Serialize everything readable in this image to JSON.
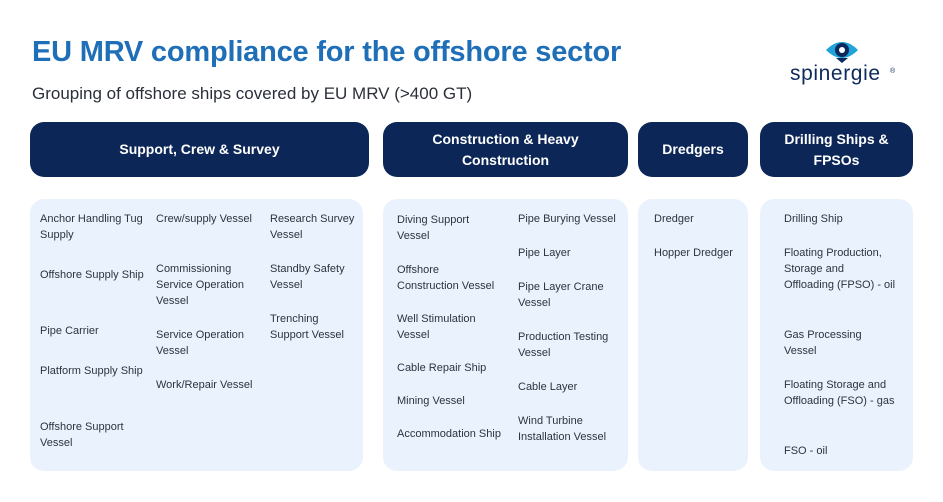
{
  "title": "EU MRV compliance for the offshore sector",
  "subtitle": "Grouping of offshore ships covered by EU MRV (>400 GT)",
  "logo": {
    "text": "spinergie",
    "mark": "®",
    "icon": "eye-logo-icon",
    "color": "#0d2a5c",
    "accent": "#1fa3d8"
  },
  "colors": {
    "title": "#1f6fb8",
    "header_bg": "#0c2757",
    "panel_bg": "#eaf3fd"
  },
  "categories": [
    {
      "label": "Support, Crew & Survey",
      "items": [
        "Anchor Handling Tug Supply",
        "Offshore Supply Ship",
        "Pipe Carrier",
        "Platform Supply Ship",
        "Offshore Support Vessel",
        "Crew/supply Vessel",
        "Commissioning Service Operation Vessel",
        "Service Operation Vessel",
        "Work/Repair Vessel",
        "Research Survey Vessel",
        "Standby Safety Vessel",
        "Trenching Support Vessel"
      ]
    },
    {
      "label": "Construction & Heavy Construction",
      "items": [
        "Diving Support Vessel",
        "Offshore Construction Vessel",
        "Well Stimulation Vessel",
        "Cable Repair Ship",
        "Mining Vessel",
        "Accommodation Ship",
        "Pipe Burying Vessel",
        "Pipe Layer",
        "Pipe Layer Crane Vessel",
        "Production Testing Vessel",
        "Cable Layer",
        "Wind Turbine Installation Vessel"
      ]
    },
    {
      "label": "Dredgers",
      "items": [
        "Dredger",
        "Hopper Dredger"
      ]
    },
    {
      "label": "Drilling Ships & FPSOs",
      "items": [
        "Drilling Ship",
        "Floating Production, Storage and Offloading (FPSO) - oil",
        "Gas Processing Vessel",
        "Floating Storage and Offloading (FSO) - gas",
        "FSO - oil"
      ]
    }
  ]
}
